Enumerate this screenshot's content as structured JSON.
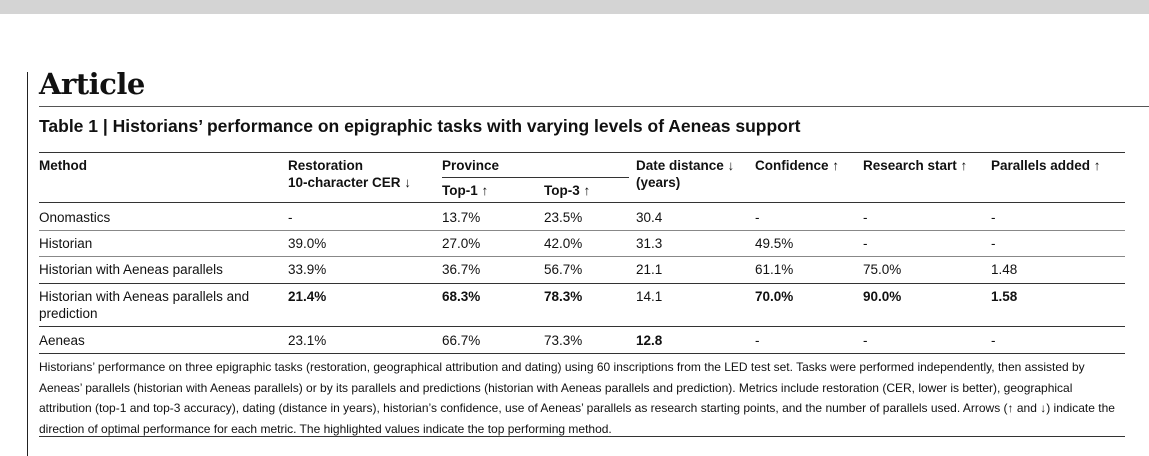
{
  "page": {
    "heading": "Article"
  },
  "table": {
    "title": "Table 1 | Historians’ performance on epigraphic tasks with varying levels of Aeneas support",
    "headers": {
      "method": "Method",
      "restoration_line1": "Restoration",
      "restoration_line2": "10-character CER ↓",
      "province": "Province",
      "top1": "Top-1 ↑",
      "top3": "Top-3 ↑",
      "date_line1": "Date distance ↓",
      "date_line2": "(years)",
      "confidence": "Confidence ↑",
      "research_start": "Research start ↑",
      "parallels_added": "Parallels added ↑"
    },
    "rows": [
      {
        "method": "Onomastics",
        "method2": "",
        "cer": "-",
        "top1": "13.7%",
        "top3": "23.5%",
        "date": "30.4",
        "confidence": "-",
        "research": "-",
        "parallels": "-"
      },
      {
        "method": "Historian",
        "method2": "",
        "cer": "39.0%",
        "top1": "27.0%",
        "top3": "42.0%",
        "date": "31.3",
        "confidence": "49.5%",
        "research": "-",
        "parallels": "-"
      },
      {
        "method": "Historian with Aeneas parallels",
        "method2": "",
        "cer": "33.9%",
        "top1": "36.7%",
        "top3": "56.7%",
        "date": "21.1",
        "confidence": "61.1%",
        "research": "75.0%",
        "parallels": "1.48"
      },
      {
        "method": "Historian with Aeneas parallels and",
        "method2": "prediction",
        "cer": "21.4%",
        "top1": "68.3%",
        "top3": "78.3%",
        "date": "14.1",
        "confidence": "70.0%",
        "research": "90.0%",
        "parallels": "1.58"
      },
      {
        "method": "Aeneas",
        "method2": "",
        "cer": "23.1%",
        "top1": "66.7%",
        "top3": "73.3%",
        "date": "12.8",
        "confidence": "-",
        "research": "-",
        "parallels": "-"
      }
    ],
    "caption": "Historians’ performance on three epigraphic tasks (restoration, geographical attribution and dating) using 60 inscriptions from the LED test set. Tasks were performed independently, then assisted by Aeneas’ parallels (historian with Aeneas parallels) or by its parallels and predictions (historian with Aeneas parallels and prediction). Metrics include restoration (CER, lower is better), geographical attribution (top-1 and top-3 accuracy), dating (distance in years), historian’s confidence, use of Aeneas’ parallels as research starting points, and the number of parallels used. Arrows (↑ and ↓) indicate the direction of optimal performance for each metric. The highlighted values indicate the top performing method."
  }
}
